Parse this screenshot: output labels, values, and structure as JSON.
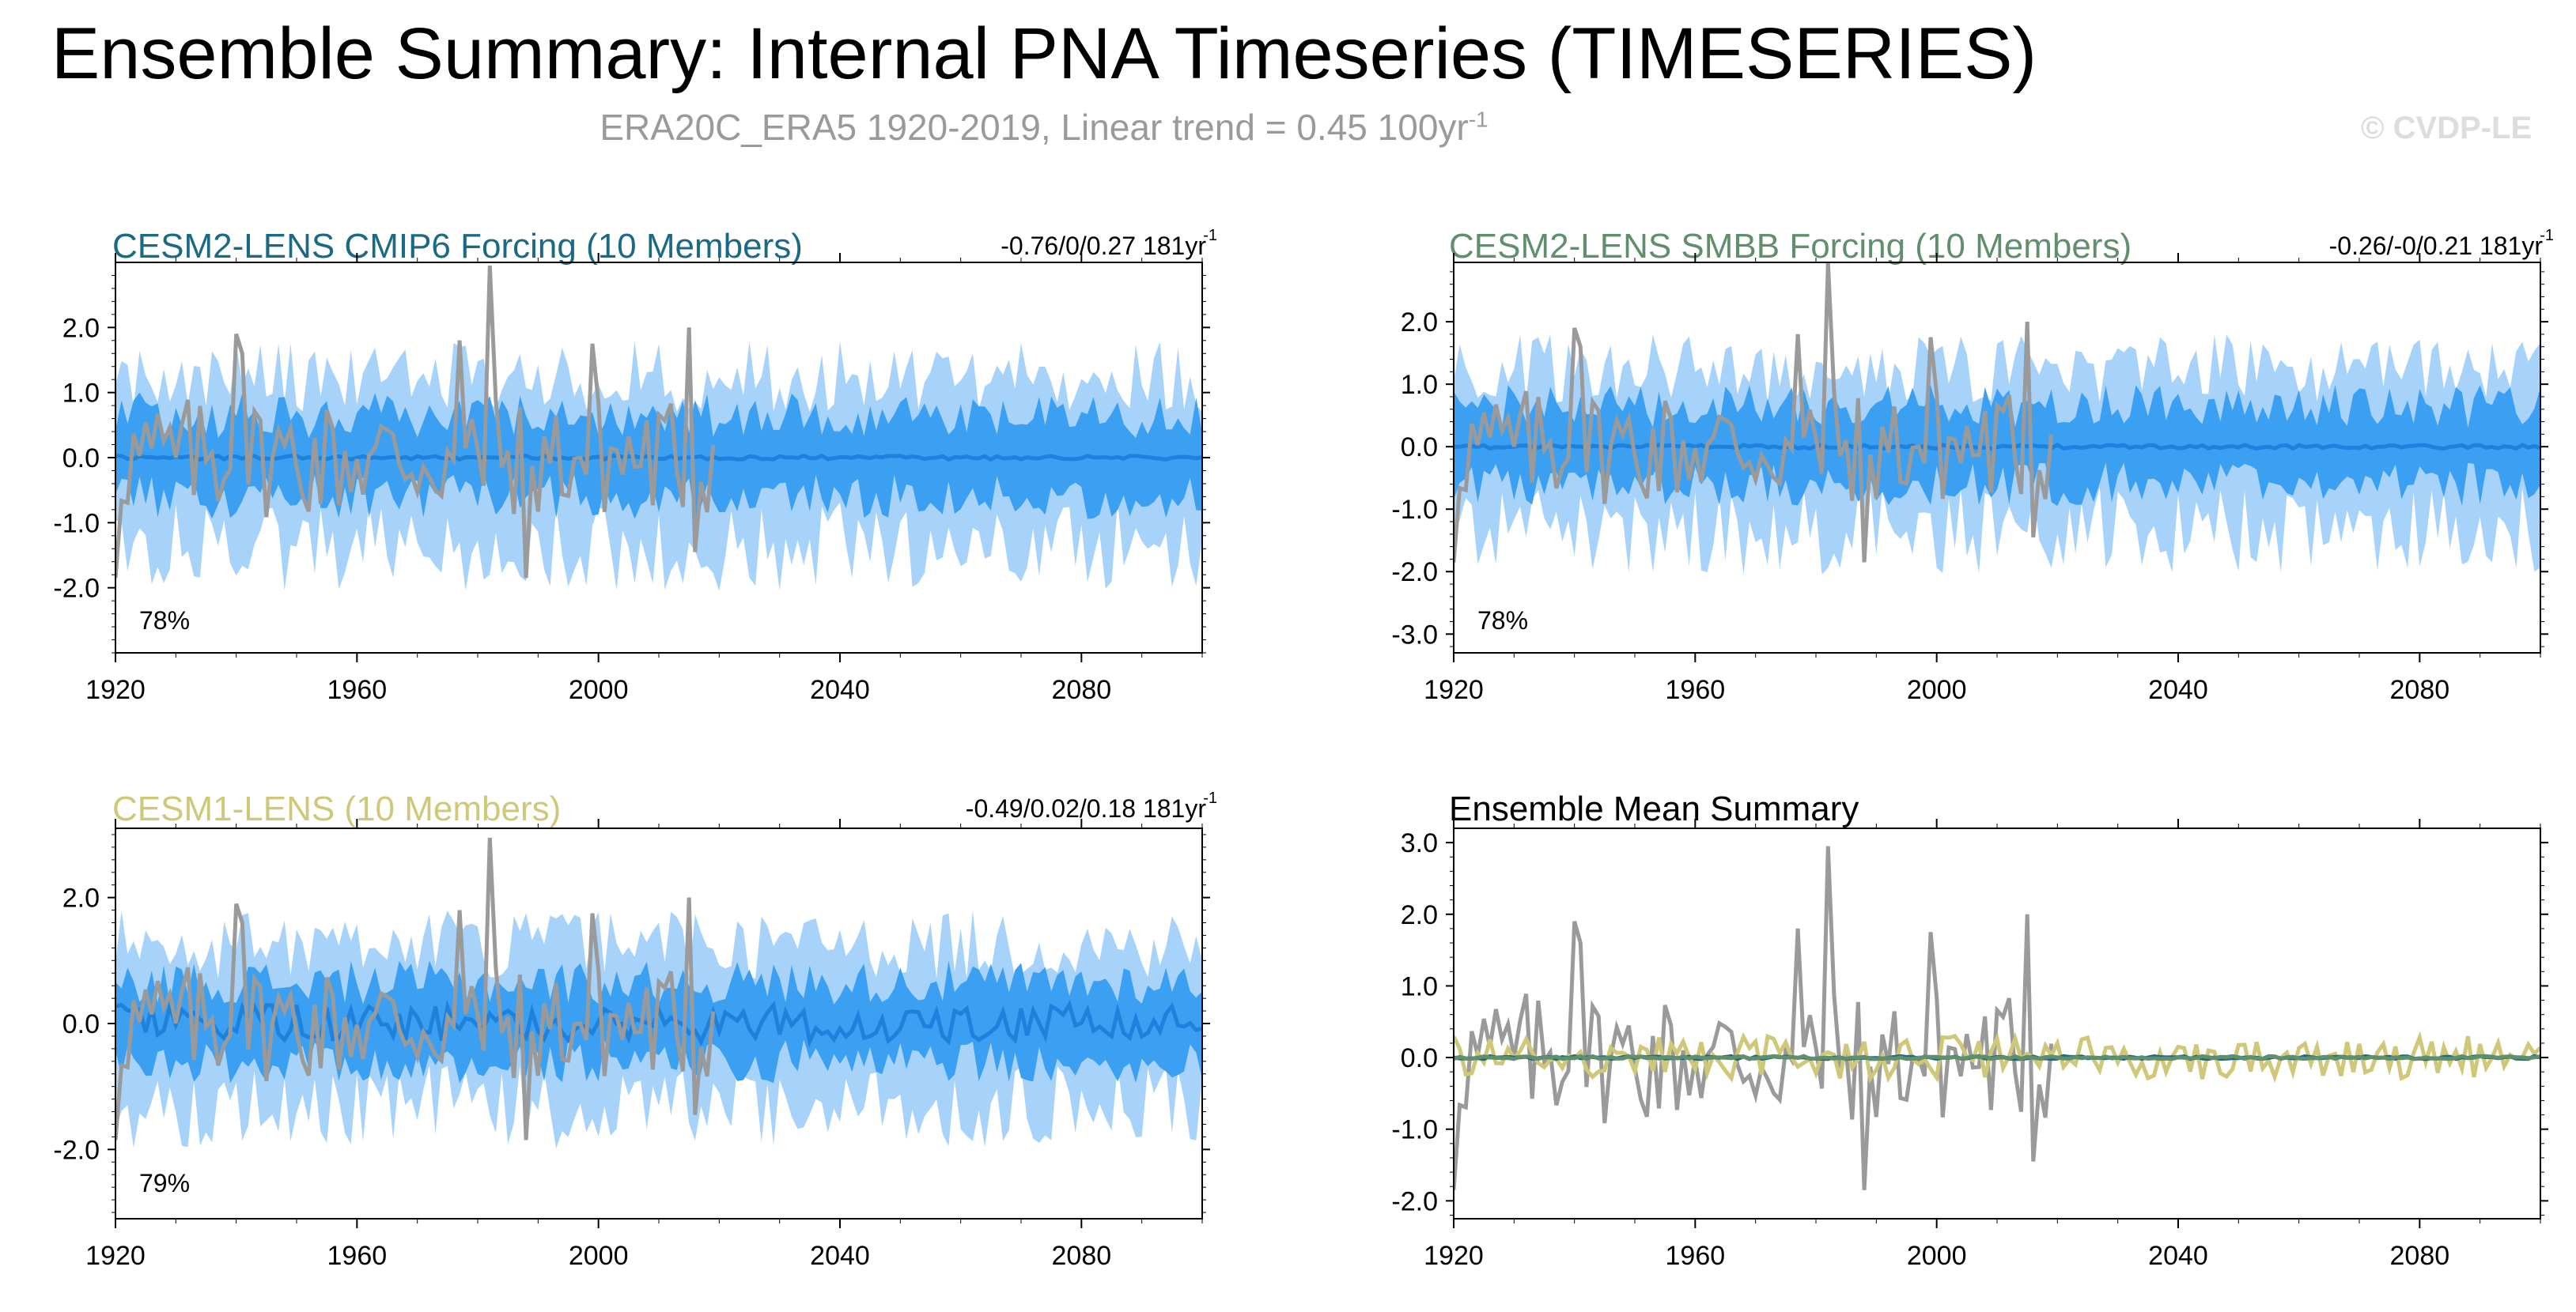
{
  "header": {
    "title": "Ensemble Summary: Internal PNA Timeseries (TIMESERIES)",
    "subtitle": "ERA20C_ERA5 1920-2019, Linear trend = 0.45 100yr",
    "subtitle_exp": "-1",
    "watermark": "© CVDP-LE"
  },
  "colors": {
    "band_outer": "#a7d3fb",
    "band_inner": "#3ba0f2",
    "ens_mean": "#1e82dc",
    "obs": "#9a9a9a",
    "cesm2_cmip6": "#1a6a86",
    "cesm2_smbb": "#5f8f6c",
    "cesm1": "#cfc879"
  },
  "chart_data": [
    {
      "type": "area",
      "title": "CESM2-LENS CMIP6 Forcing (10 Members)",
      "title_color": "#1a6a86",
      "trend_label": "-0.76/0/0.27 181yr",
      "trend_exp": "-1",
      "percent_label": "78%",
      "x_range": [
        1920,
        2100
      ],
      "ylim": [
        -3.0,
        3.0
      ],
      "yticks": [
        -2.0,
        -1.0,
        0.0,
        1.0,
        2.0
      ],
      "ytick_labels": [
        "-2.0",
        "-1.0",
        "0.0",
        "1.0",
        "2.0"
      ],
      "xticks": [
        1920,
        1960,
        2000,
        2040,
        2080
      ],
      "xtick_labels": [
        "1920",
        "1960",
        "2000",
        "2040",
        "2080"
      ],
      "series": [
        {
          "name": "ensemble 10-90% range",
          "kind": "band",
          "lower": -1.35,
          "upper": 1.25
        },
        {
          "name": "ensemble 25-75% range",
          "kind": "band",
          "lower": -0.6,
          "upper": 0.65
        },
        {
          "name": "ensemble mean",
          "kind": "line",
          "values": 0.0
        },
        {
          "name": "ERA20C_ERA5",
          "kind": "line",
          "x_start": 1920,
          "x_end": 2019
        }
      ]
    },
    {
      "type": "area",
      "title": "CESM2-LENS SMBB Forcing (10 Members)",
      "title_color": "#5f8f6c",
      "trend_label": "-0.26/-0/0.21 181yr",
      "trend_exp": "-1",
      "percent_label": "78%",
      "x_range": [
        1920,
        2100
      ],
      "ylim": [
        -3.3,
        2.95
      ],
      "yticks": [
        -3.0,
        -2.0,
        -1.0,
        0.0,
        1.0,
        2.0
      ],
      "ytick_labels": [
        "-3.0",
        "-2.0",
        "-1.0",
        "0.0",
        "1.0",
        "2.0"
      ],
      "xticks": [
        1920,
        1960,
        2000,
        2040,
        2080
      ],
      "xtick_labels": [
        "1920",
        "1960",
        "2000",
        "2040",
        "2080"
      ],
      "series": [
        {
          "name": "ensemble 10-90% range",
          "kind": "band",
          "lower": -1.35,
          "upper": 1.25
        },
        {
          "name": "ensemble 25-75% range",
          "kind": "band",
          "lower": -0.6,
          "upper": 0.65
        },
        {
          "name": "ensemble mean",
          "kind": "line",
          "values": 0.0
        },
        {
          "name": "ERA20C_ERA5",
          "kind": "line",
          "x_start": 1920,
          "x_end": 2019
        }
      ]
    },
    {
      "type": "area",
      "title": "CESM1-LENS (10 Members)",
      "title_color": "#cfc879",
      "trend_label": "-0.49/0.02/0.18 181yr",
      "trend_exp": "-1",
      "percent_label": "79%",
      "x_range": [
        1920,
        2100
      ],
      "ylim": [
        -3.1,
        3.1
      ],
      "yticks": [
        -2.0,
        0.0,
        2.0
      ],
      "ytick_labels": [
        "-2.0",
        "0.0",
        "2.0"
      ],
      "xticks": [
        1920,
        1960,
        2000,
        2040,
        2080
      ],
      "xtick_labels": [
        "1920",
        "1960",
        "2000",
        "2040",
        "2080"
      ],
      "series": [
        {
          "name": "ensemble 10-90% range",
          "kind": "band",
          "lower": -1.35,
          "upper": 1.25
        },
        {
          "name": "ensemble 25-75% range",
          "kind": "band",
          "lower": -0.6,
          "upper": 0.65
        },
        {
          "name": "ensemble mean",
          "kind": "line",
          "amplitude": 0.3
        },
        {
          "name": "ERA20C_ERA5",
          "kind": "line",
          "x_start": 1920,
          "x_end": 2019
        }
      ]
    },
    {
      "type": "line",
      "title": "Ensemble Mean Summary",
      "title_color": "#000000",
      "x_range": [
        1920,
        2100
      ],
      "ylim": [
        -2.25,
        3.2
      ],
      "yticks": [
        -2.0,
        -1.0,
        0.0,
        1.0,
        2.0,
        3.0
      ],
      "ytick_labels": [
        "-2.0",
        "-1.0",
        "0.0",
        "1.0",
        "2.0",
        "3.0"
      ],
      "xticks": [
        1920,
        1960,
        2000,
        2040,
        2080
      ],
      "xtick_labels": [
        "1920",
        "1960",
        "2000",
        "2040",
        "2080"
      ],
      "series": [
        {
          "name": "ERA20C_ERA5",
          "color": "#9a9a9a",
          "x_start": 1920,
          "x_end": 2019
        },
        {
          "name": "CESM1-LENS",
          "color": "#cfc879",
          "amplitude": 0.3
        },
        {
          "name": "CESM2-LENS CMIP6 Forcing",
          "color": "#1a6a86",
          "values": 0.0
        },
        {
          "name": "CESM2-LENS SMBB Forcing",
          "color": "#5f8f6c",
          "values": 0.0
        }
      ]
    }
  ]
}
